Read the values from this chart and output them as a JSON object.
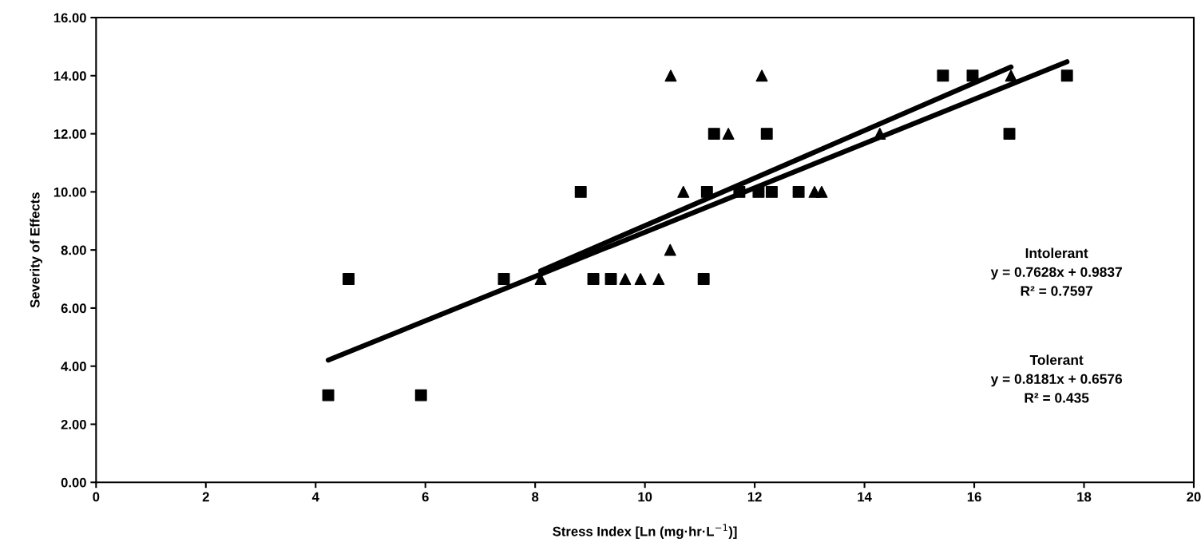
{
  "chart_data": {
    "type": "scatter",
    "xlabel": "Stress Index [Ln (mg·hr·L$^{−1}$)]",
    "ylabel": "Severity of Effects",
    "xlim": [
      0,
      20
    ],
    "xticks": [
      0,
      2,
      4,
      6,
      8,
      10,
      12,
      14,
      16,
      18,
      20
    ],
    "ylim": [
      0,
      16
    ],
    "yticks": [
      {
        "value": 0,
        "label": "0.00"
      },
      {
        "value": 2,
        "label": "2.00"
      },
      {
        "value": 4,
        "label": "4.00"
      },
      {
        "value": 6,
        "label": "6.00"
      },
      {
        "value": 8,
        "label": "8.00"
      },
      {
        "value": 10,
        "label": "10.00"
      },
      {
        "value": 12,
        "label": "12.00"
      },
      {
        "value": 14,
        "label": "14.00"
      },
      {
        "value": 16,
        "label": "16.00"
      }
    ],
    "grid": false,
    "legend": false,
    "series": [
      {
        "marker": "square",
        "color": "#000000",
        "x": [
          4.23,
          4.6,
          5.92,
          7.43,
          8.83,
          9.06,
          9.38,
          11.07,
          11.13,
          11.26,
          11.72,
          12.07,
          12.22,
          12.31,
          12.8,
          15.43,
          15.97,
          16.64,
          17.69
        ],
        "values": [
          3,
          7,
          3,
          7,
          10,
          7,
          7,
          7,
          10,
          12,
          10,
          10,
          12,
          10,
          10,
          14,
          14,
          12,
          14
        ]
      },
      {
        "marker": "triangle",
        "color": "#000000",
        "x": [
          8.1,
          9.64,
          9.92,
          10.25,
          10.46,
          10.47,
          10.7,
          11.52,
          12.13,
          13.09,
          13.22,
          14.28,
          16.67
        ],
        "values": [
          7,
          7,
          7,
          7,
          8,
          14,
          10,
          12,
          14,
          10,
          10,
          12,
          14
        ]
      },
      {
        "type": "line",
        "marker": "none",
        "color": "#000000",
        "x": [
          4.23,
          17.69
        ],
        "values": [
          4.21,
          14.48
        ]
      },
      {
        "type": "line",
        "marker": "none",
        "color": "#000000",
        "x": [
          8.1,
          16.67
        ],
        "values": [
          7.28,
          14.3
        ]
      }
    ],
    "annotations": [
      "Intolerant\ny = 0.7628x + 0.9837\nR² = 0.7597",
      "Tolerant\ny = 0.8181x + 0.6576\nR² = 0.435"
    ]
  }
}
